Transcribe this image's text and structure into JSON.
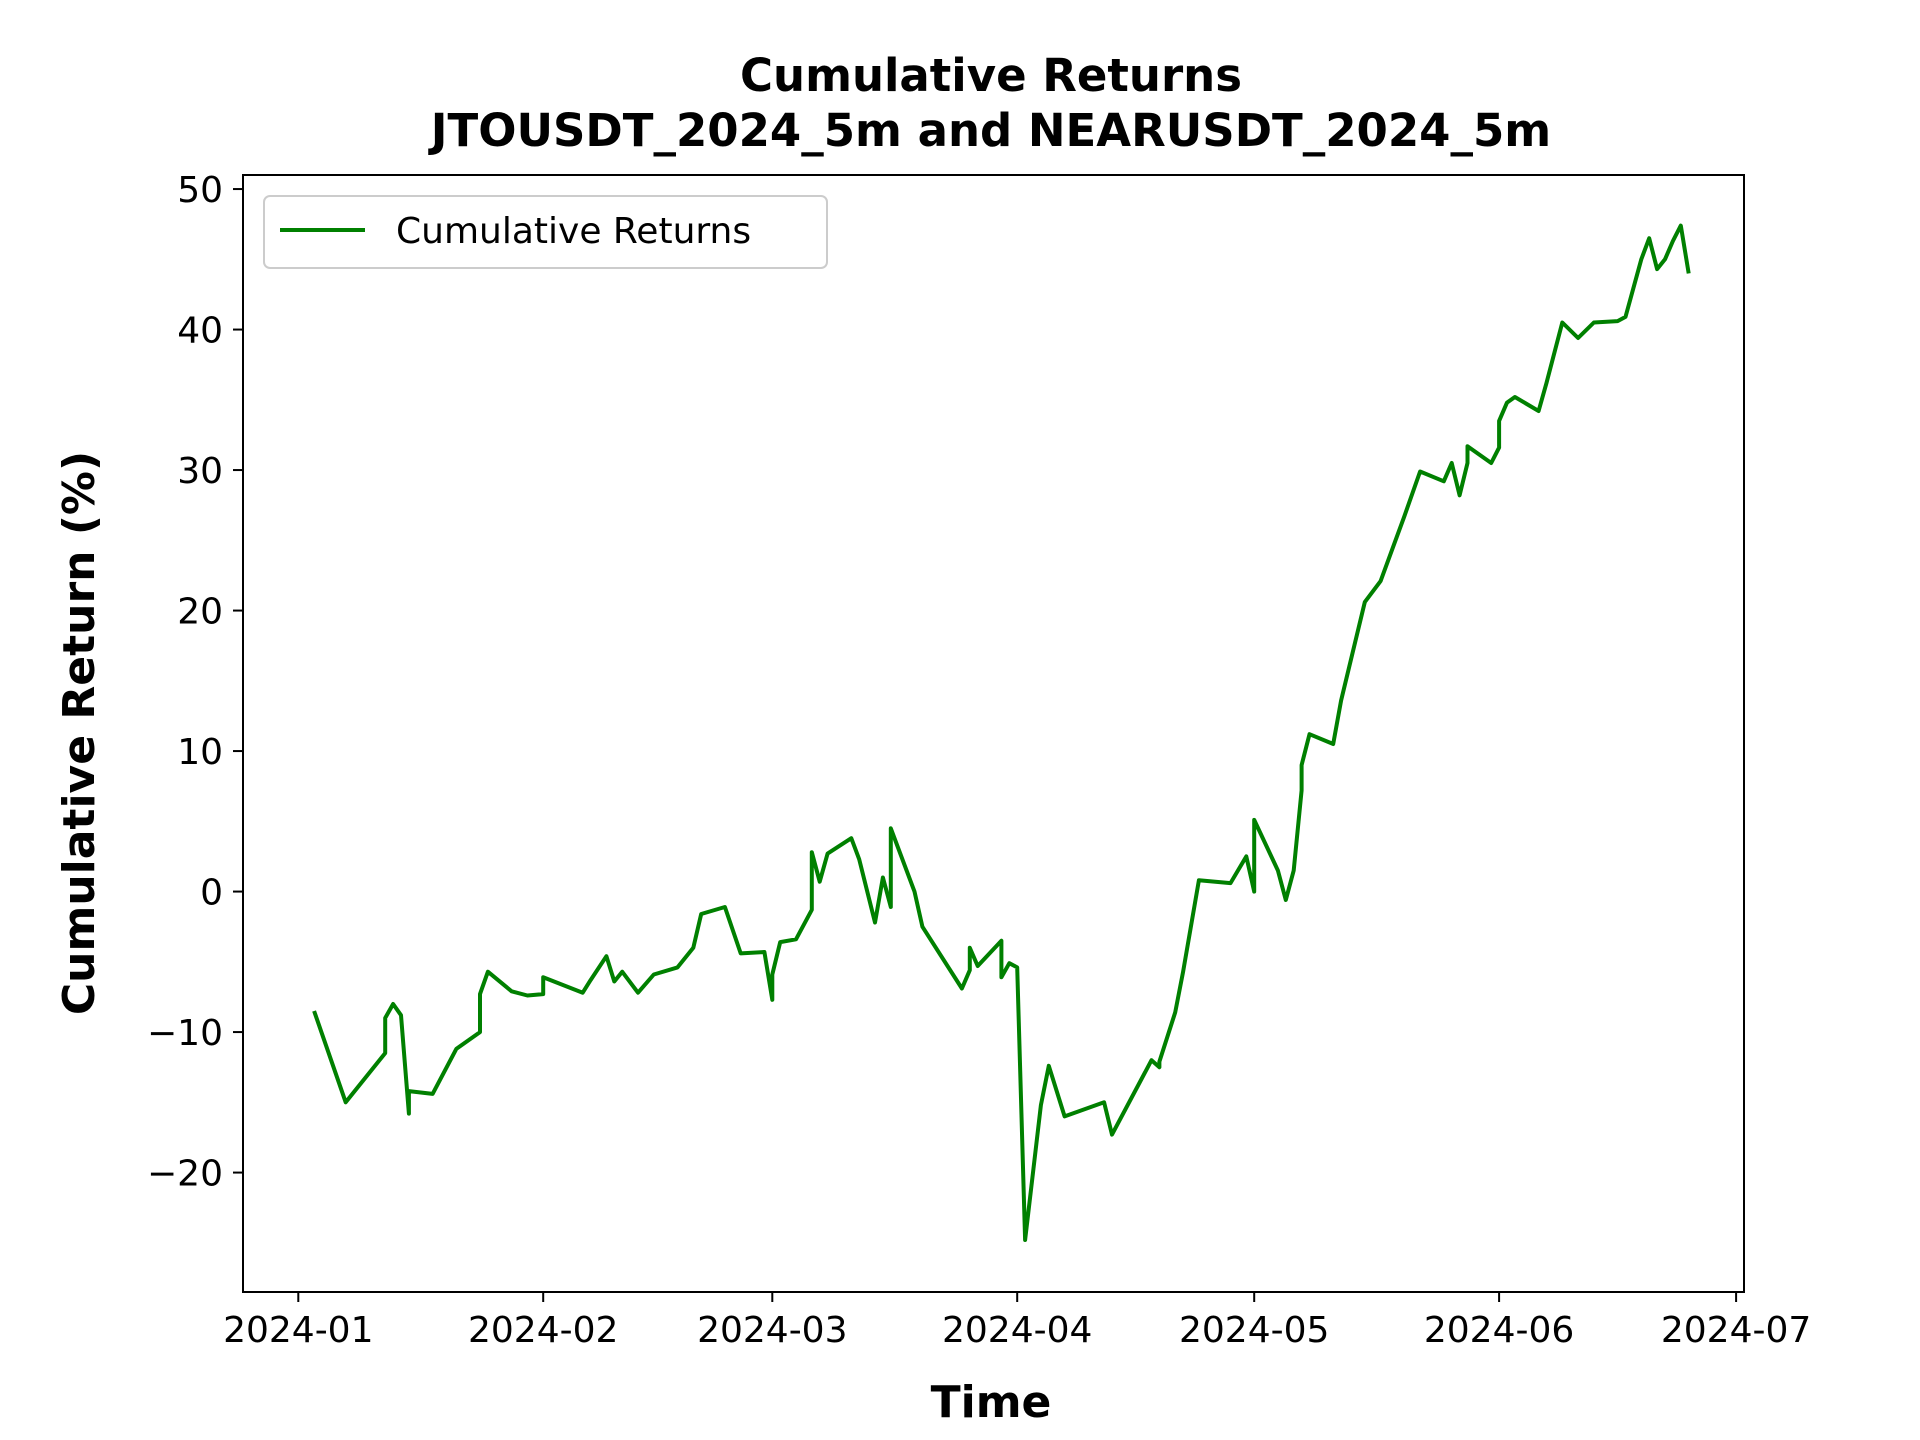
{
  "chart_data": {
    "type": "line",
    "title": "Cumulative Returns",
    "subtitle": "JTOUSDT_2024_5m and NEARUSDT_2024_5m",
    "xlabel": "Time",
    "ylabel": "Cumulative Return (%)",
    "x_ticks": [
      "2024-01",
      "2024-02",
      "2024-03",
      "2024-04",
      "2024-05",
      "2024-06",
      "2024-07"
    ],
    "y_ticks": [
      -20,
      -10,
      0,
      10,
      20,
      30,
      40,
      50
    ],
    "y_tick_labels": [
      "−20",
      "−10",
      "0",
      "10",
      "20",
      "30",
      "40",
      "50"
    ],
    "xlim": [
      "2023-12-25",
      "2024-07-02"
    ],
    "ylim": [
      -28.5,
      51
    ],
    "grid": false,
    "legend": "top-left",
    "series": [
      {
        "name": "Cumulative Returns",
        "color": "#008000",
        "x": [
          "2024-01-03",
          "2024-01-07",
          "2024-01-12",
          "2024-01-12",
          "2024-01-13",
          "2024-01-14",
          "2024-01-15",
          "2024-01-15",
          "2024-01-18",
          "2024-01-21",
          "2024-01-24",
          "2024-01-24",
          "2024-01-25",
          "2024-01-28",
          "2024-01-30",
          "2024-02-01",
          "2024-02-01",
          "2024-02-06",
          "2024-02-07",
          "2024-02-09",
          "2024-02-10",
          "2024-02-11",
          "2024-02-13",
          "2024-02-15",
          "2024-02-18",
          "2024-02-20",
          "2024-02-21",
          "2024-02-24",
          "2024-02-26",
          "2024-02-29",
          "2024-03-01",
          "2024-03-01",
          "2024-03-02",
          "2024-03-04",
          "2024-03-06",
          "2024-03-06",
          "2024-03-07",
          "2024-03-08",
          "2024-03-11",
          "2024-03-12",
          "2024-03-14",
          "2024-03-15",
          "2024-03-16",
          "2024-03-16",
          "2024-03-19",
          "2024-03-20",
          "2024-03-25",
          "2024-03-26",
          "2024-03-26",
          "2024-03-27",
          "2024-03-30",
          "2024-03-30",
          "2024-03-31",
          "2024-04-01",
          "2024-04-02",
          "2024-04-04",
          "2024-04-05",
          "2024-04-07",
          "2024-04-12",
          "2024-04-13",
          "2024-04-18",
          "2024-04-19",
          "2024-04-19",
          "2024-04-21",
          "2024-04-22",
          "2024-04-24",
          "2024-04-28",
          "2024-04-30",
          "2024-05-01",
          "2024-05-01",
          "2024-05-04",
          "2024-05-05",
          "2024-05-06",
          "2024-05-07",
          "2024-05-07",
          "2024-05-08",
          "2024-05-11",
          "2024-05-12",
          "2024-05-15",
          "2024-05-17",
          "2024-05-20",
          "2024-05-22",
          "2024-05-25",
          "2024-05-26",
          "2024-05-27",
          "2024-05-28",
          "2024-05-28",
          "2024-05-31",
          "2024-06-01",
          "2024-06-01",
          "2024-06-02",
          "2024-06-03",
          "2024-06-06",
          "2024-06-07",
          "2024-06-09",
          "2024-06-11",
          "2024-06-13",
          "2024-06-16",
          "2024-06-17",
          "2024-06-19",
          "2024-06-20",
          "2024-06-21",
          "2024-06-22",
          "2024-06-23",
          "2024-06-24",
          "2024-06-25"
        ],
        "values": [
          -8.5,
          -15.0,
          -11.5,
          -9.0,
          -8.0,
          -8.8,
          -15.8,
          -14.2,
          -14.4,
          -11.2,
          -10.0,
          -7.3,
          -5.7,
          -7.1,
          -7.4,
          -7.3,
          -6.1,
          -7.2,
          -6.3,
          -4.6,
          -6.4,
          -5.7,
          -7.2,
          -5.9,
          -5.4,
          -4.0,
          -1.6,
          -1.1,
          -4.4,
          -4.3,
          -7.7,
          -5.9,
          -3.6,
          -3.4,
          -1.3,
          2.8,
          0.7,
          2.7,
          3.8,
          2.3,
          -2.2,
          1.0,
          -1.1,
          4.5,
          0.0,
          -2.5,
          -6.9,
          -5.6,
          -4.0,
          -5.3,
          -3.5,
          -6.1,
          -5.1,
          -5.4,
          -24.8,
          -15.2,
          -12.4,
          -16.0,
          -15.0,
          -17.3,
          -12.0,
          -12.5,
          -12.1,
          -8.6,
          -5.7,
          0.8,
          0.6,
          2.5,
          0.0,
          5.1,
          1.5,
          -0.6,
          1.5,
          7.2,
          9.0,
          11.2,
          10.5,
          13.6,
          20.6,
          22.1,
          26.7,
          29.9,
          29.2,
          30.5,
          28.2,
          30.5,
          31.7,
          30.5,
          31.6,
          33.5,
          34.8,
          35.2,
          34.2,
          36.2,
          40.5,
          39.4,
          40.5,
          40.6,
          40.9,
          45.0,
          46.5,
          44.3,
          45.0,
          46.3,
          47.4,
          44.0
        ]
      }
    ]
  }
}
